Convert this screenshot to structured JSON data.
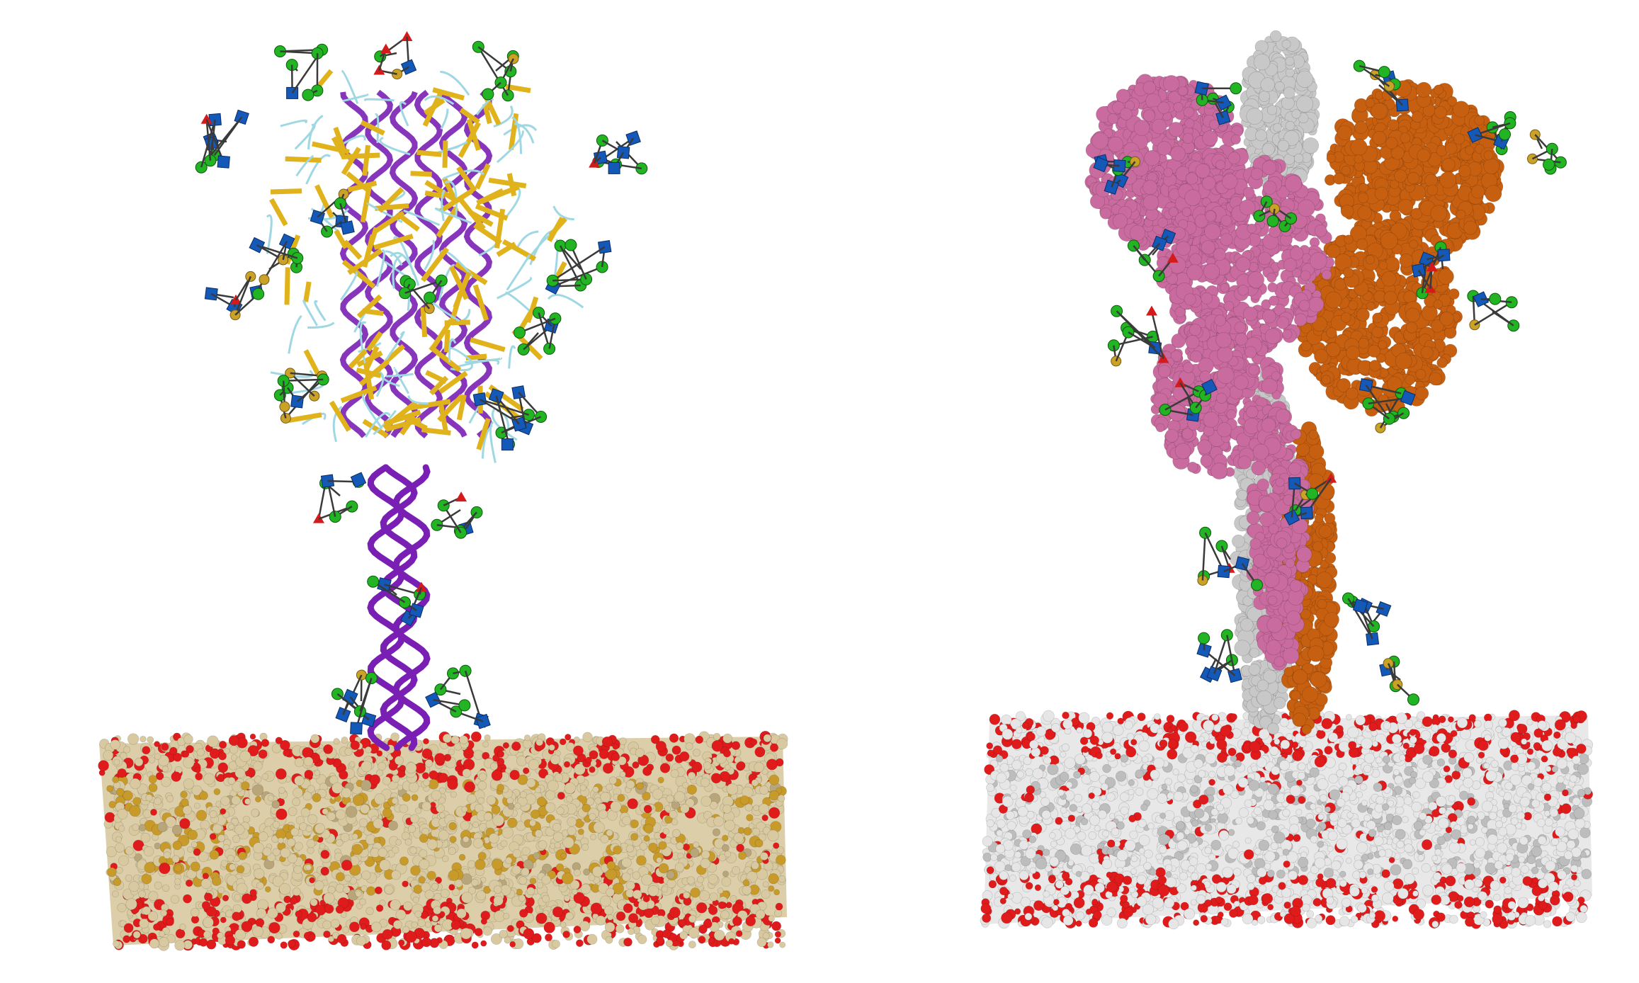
{
  "figure": {
    "panels": [
      {
        "id": "left",
        "depiction": "ribbon-protein-with-glycans-on-membrane",
        "colors": {
          "helix": "#7a1fb3",
          "sheet": "#e0b21c",
          "coil": "#9fd8e3",
          "glycan_sphere": "#22b422",
          "glycan_cube": "#1458b8",
          "glycan_gold": "#c9a227",
          "glycan_red": "#d41a1a",
          "lipid_body": "#d8c9a0",
          "lipid_head_red": "#e01b1b",
          "lipid_gold": "#c89a2a"
        }
      },
      {
        "id": "right",
        "depiction": "surface-protein-with-glycans-on-membrane",
        "colors": {
          "chain_pink": "#c96b9e",
          "chain_orange": "#c65f10",
          "chain_grey": "#c8c8c8",
          "glycan_sphere": "#22b422",
          "glycan_cube": "#1458b8",
          "glycan_gold": "#c9a227",
          "lipid_body": "#e6e6e6",
          "lipid_head_red": "#e01b1b"
        }
      }
    ]
  }
}
